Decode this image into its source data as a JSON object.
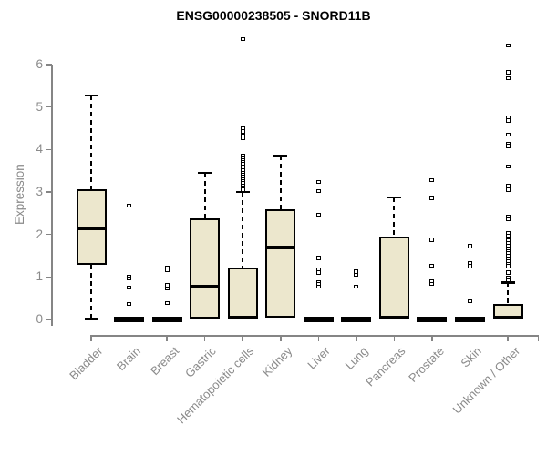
{
  "title": "ENSG00000238505 - SNORD11B",
  "ylabel": "Expression",
  "colors": {
    "box_fill": "#ece7cd",
    "box_border": "#000000",
    "median": "#000000",
    "axis": "#858585",
    "tick_label": "#8a8a8a",
    "title_text": "#000000",
    "background": "#ffffff"
  },
  "chart_data": {
    "type": "boxplot",
    "title": "ENSG00000238505 - SNORD11B",
    "xlabel": "",
    "ylabel": "Expression",
    "ylim": [
      0,
      6.7
    ],
    "yticks": [
      0,
      1,
      2,
      3,
      4,
      5,
      6
    ],
    "grid": false,
    "legend": "none",
    "categories": [
      "Bladder",
      "Brain",
      "Breast",
      "Gastric",
      "Hematopoietic cells",
      "Kidney",
      "Liver",
      "Lung",
      "Pancreas",
      "Prostate",
      "Skin",
      "Unknown / Other"
    ],
    "series": [
      {
        "name": "Bladder",
        "whisker_low": 0.02,
        "q1": 1.28,
        "median": 2.15,
        "q3": 3.07,
        "whisker_high": 5.28,
        "outliers": []
      },
      {
        "name": "Brain",
        "whisker_low": 0,
        "q1": 0,
        "median": 0.02,
        "q3": 0.04,
        "whisker_high": 0.05,
        "outliers": [
          2.68,
          1.0,
          0.96,
          0.75,
          0.36
        ]
      },
      {
        "name": "Breast",
        "whisker_low": 0,
        "q1": 0,
        "median": 0.02,
        "q3": 0.04,
        "whisker_high": 0.05,
        "outliers": [
          1.22,
          1.17,
          0.8,
          0.73,
          0.39
        ]
      },
      {
        "name": "Gastric",
        "whisker_low": 0.01,
        "q1": 0.03,
        "median": 0.78,
        "q3": 2.37,
        "whisker_high": 3.45,
        "outliers": []
      },
      {
        "name": "Hematopoietic cells",
        "whisker_low": 0,
        "q1": 0.01,
        "median": 0.04,
        "q3": 1.22,
        "whisker_high": 3.0,
        "outliers": [
          6.6,
          4.5,
          4.42,
          4.33,
          4.27,
          3.85,
          3.8,
          3.75,
          3.7,
          3.65,
          3.6,
          3.55,
          3.5,
          3.45,
          3.4,
          3.35,
          3.3,
          3.25,
          3.2,
          3.15,
          3.1,
          3.05
        ]
      },
      {
        "name": "Kidney",
        "whisker_low": 0.01,
        "q1": 0.05,
        "median": 1.7,
        "q3": 2.6,
        "whisker_high": 3.85,
        "outliers": []
      },
      {
        "name": "Liver",
        "whisker_low": 0,
        "q1": 0,
        "median": 0.02,
        "q3": 0.04,
        "whisker_high": 0.05,
        "outliers": [
          3.24,
          3.02,
          2.46,
          1.45,
          1.18,
          1.1,
          0.88,
          0.82,
          0.77
        ]
      },
      {
        "name": "Lung",
        "whisker_low": 0,
        "q1": 0,
        "median": 0.02,
        "q3": 0.04,
        "whisker_high": 0.05,
        "outliers": [
          1.12,
          1.05,
          0.77
        ]
      },
      {
        "name": "Pancreas",
        "whisker_low": 0.01,
        "q1": 0.02,
        "median": 0.05,
        "q3": 1.95,
        "whisker_high": 2.88,
        "outliers": []
      },
      {
        "name": "Prostate",
        "whisker_low": 0,
        "q1": 0,
        "median": 0.02,
        "q3": 0.04,
        "whisker_high": 0.05,
        "outliers": [
          3.28,
          2.86,
          1.88,
          1.26,
          0.9,
          0.84
        ]
      },
      {
        "name": "Skin",
        "whisker_low": 0,
        "q1": 0,
        "median": 0.02,
        "q3": 0.04,
        "whisker_high": 0.05,
        "outliers": [
          1.73,
          1.32,
          1.25,
          0.43
        ]
      },
      {
        "name": "Unknown / Other",
        "whisker_low": 0,
        "q1": 0.01,
        "median": 0.04,
        "q3": 0.37,
        "whisker_high": 0.87,
        "outliers": [
          6.45,
          5.82,
          5.68,
          4.76,
          4.68,
          4.35,
          4.14,
          4.08,
          3.6,
          3.14,
          3.05,
          2.42,
          2.36,
          2.03,
          1.97,
          1.91,
          1.85,
          1.79,
          1.73,
          1.67,
          1.61,
          1.55,
          1.49,
          1.43,
          1.37,
          1.31,
          1.25,
          1.1,
          0.99,
          0.92
        ]
      }
    ]
  }
}
